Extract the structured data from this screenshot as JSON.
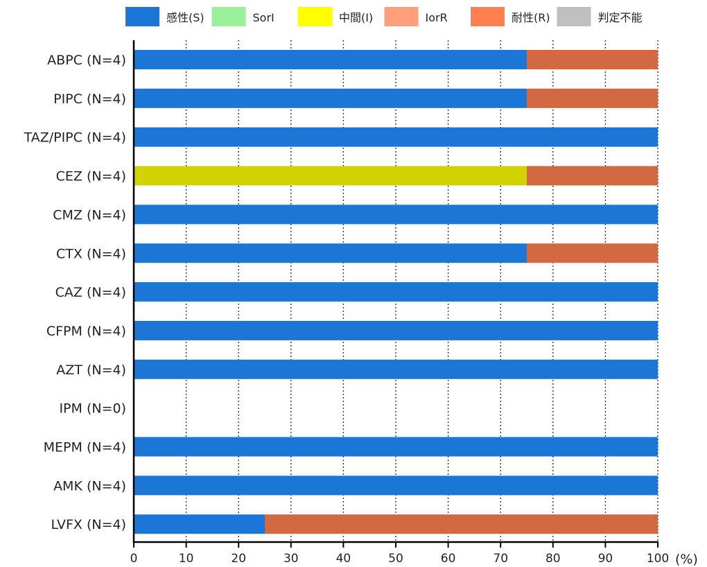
{
  "chart_data": {
    "type": "bar",
    "orientation": "horizontal",
    "stacked": true,
    "categories": [
      "ABPC (N=4)",
      "PIPC (N=4)",
      "TAZ/PIPC (N=4)",
      "CEZ (N=4)",
      "CMZ (N=4)",
      "CTX (N=4)",
      "CAZ (N=4)",
      "CFPM (N=4)",
      "AZT (N=4)",
      "IPM (N=0)",
      "MEPM (N=4)",
      "AMK (N=4)",
      "LVFX (N=4)"
    ],
    "series": [
      {
        "name": "感性(S)",
        "color": "#1b76d6",
        "values": [
          75,
          75,
          100,
          0,
          100,
          75,
          100,
          100,
          100,
          0,
          100,
          100,
          25
        ]
      },
      {
        "name": "SorI",
        "color": "#99f299",
        "values": [
          0,
          0,
          0,
          0,
          0,
          0,
          0,
          0,
          0,
          0,
          0,
          0,
          0
        ]
      },
      {
        "name": "中間(I)",
        "color": "#d2d200",
        "legend_color": "#ffff00",
        "values": [
          0,
          0,
          0,
          75,
          0,
          0,
          0,
          0,
          0,
          0,
          0,
          0,
          0
        ]
      },
      {
        "name": "IorR",
        "color": "#ffa07a",
        "values": [
          0,
          0,
          0,
          0,
          0,
          0,
          0,
          0,
          0,
          0,
          0,
          0,
          0
        ]
      },
      {
        "name": "耐性(R)",
        "color": "#d26942",
        "legend_color": "#ff7f50",
        "values": [
          25,
          25,
          0,
          25,
          0,
          25,
          0,
          0,
          0,
          0,
          0,
          0,
          75
        ]
      },
      {
        "name": "判定不能",
        "color": "#c0c0c0",
        "values": [
          0,
          0,
          0,
          0,
          0,
          0,
          0,
          0,
          0,
          0,
          0,
          0,
          0
        ]
      }
    ],
    "x_ticks": [
      0,
      10,
      20,
      30,
      40,
      50,
      60,
      70,
      80,
      90,
      100
    ],
    "xlim": [
      0,
      100
    ],
    "x_unit": "(%)",
    "grid": "vertical-dotted",
    "legend": "top"
  }
}
